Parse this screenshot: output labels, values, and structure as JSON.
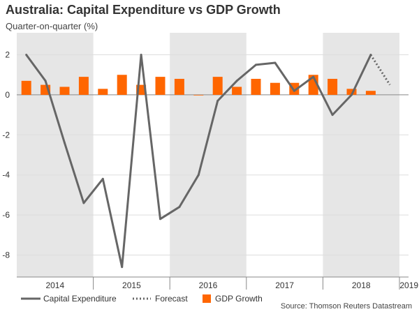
{
  "title": "Australia: Capital Expenditure vs GDP Growth",
  "subtitle": "Quarter-on-quarter (%)",
  "source": "Source: Thomson Reuters Datastream",
  "colors": {
    "capex_line": "#666666",
    "gdp_bar": "#ff6600",
    "shading": "#e6e6e6",
    "zero_line": "#888888",
    "grid": "#dddddd"
  },
  "chart_data": {
    "type": "bar",
    "title": "Australia: Capital Expenditure vs GDP Growth",
    "subtitle": "Quarter-on-quarter (%)",
    "ylim": [
      -9.1,
      3.1
    ],
    "yticks": [
      2,
      0,
      -2,
      -4,
      -6,
      -8
    ],
    "grid": true,
    "legend_position": "bottom",
    "shaded_years": [
      "2014",
      "2016",
      "2018"
    ],
    "categories": [
      "2014 Q1",
      "2014 Q2",
      "2014 Q3",
      "2014 Q4",
      "2015 Q1",
      "2015 Q2",
      "2015 Q3",
      "2015 Q4",
      "2016 Q1",
      "2016 Q2",
      "2016 Q3",
      "2016 Q4",
      "2017 Q1",
      "2017 Q2",
      "2017 Q3",
      "2017 Q4",
      "2018 Q1",
      "2018 Q2",
      "2018 Q3",
      "2018 Q4",
      "2019 Q1"
    ],
    "year_labels": [
      {
        "label": "2014",
        "first_quarter": 0
      },
      {
        "label": "2015",
        "first_quarter": 4
      },
      {
        "label": "2016",
        "first_quarter": 8
      },
      {
        "label": "2017",
        "first_quarter": 12
      },
      {
        "label": "2018",
        "first_quarter": 16
      },
      {
        "label": "2019",
        "first_quarter": 20
      }
    ],
    "series": [
      {
        "name": "GDP Growth",
        "kind": "bar",
        "values": [
          0.7,
          0.5,
          0.4,
          0.9,
          0.3,
          1.0,
          0.5,
          0.9,
          0.8,
          0.0,
          0.9,
          0.4,
          0.8,
          0.6,
          0.6,
          1.0,
          0.8,
          0.3,
          0.2,
          null,
          null
        ]
      },
      {
        "name": "Capital Expenditure",
        "kind": "line",
        "values": [
          2.0,
          0.7,
          -2.4,
          -5.4,
          -4.2,
          -8.6,
          2.0,
          -6.2,
          -5.6,
          -4.0,
          -0.3,
          0.7,
          1.5,
          1.6,
          0.2,
          0.9,
          -1.0,
          0.0,
          2.0,
          null,
          null
        ]
      },
      {
        "name": "Forecast",
        "kind": "dotted-line",
        "values": [
          null,
          null,
          null,
          null,
          null,
          null,
          null,
          null,
          null,
          null,
          null,
          null,
          null,
          null,
          null,
          null,
          null,
          null,
          2.0,
          0.5,
          null
        ]
      }
    ]
  }
}
